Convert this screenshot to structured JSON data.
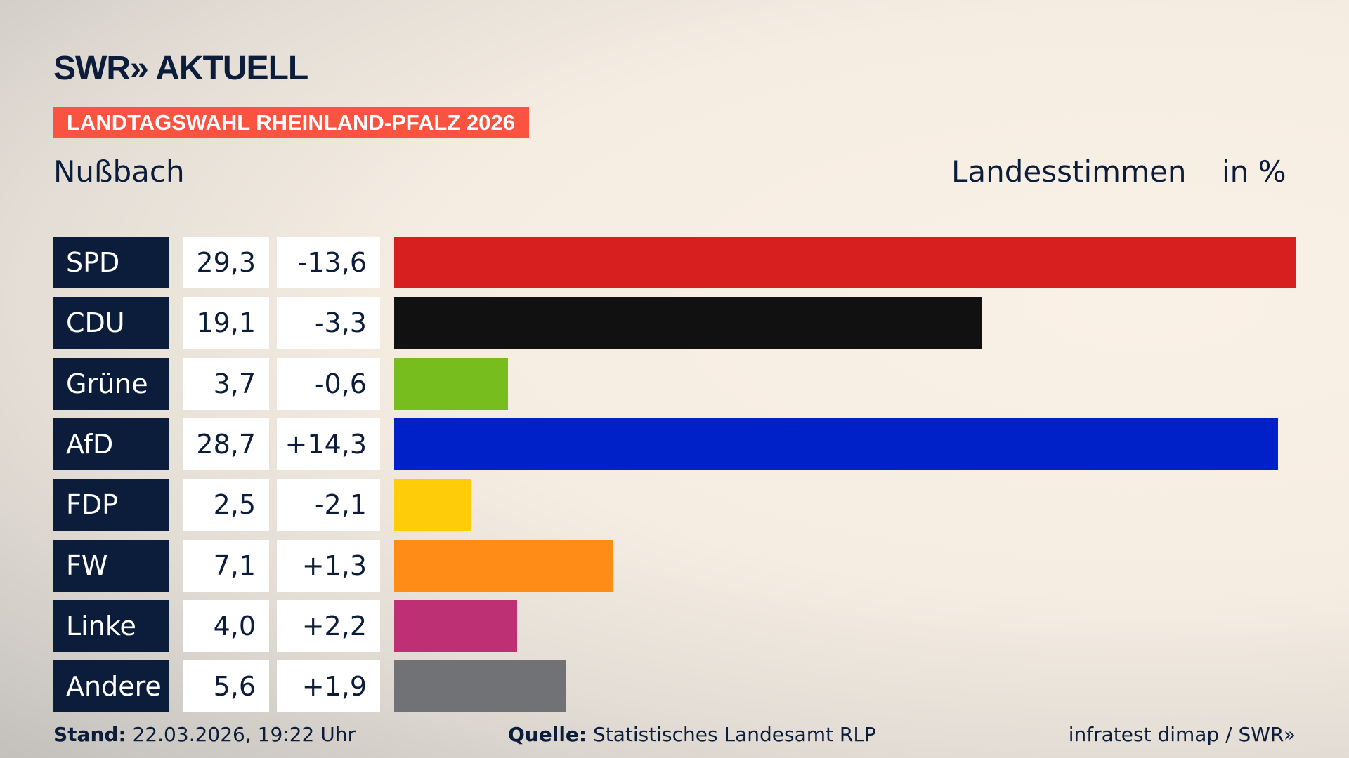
{
  "header": {
    "logo": "SWR» AKTUELL",
    "banner": "LANDTAGSWAHL RHEINLAND-PFALZ 2026",
    "place": "Nußbach",
    "vote_type": "Landesstimmen",
    "unit": "in %"
  },
  "chart_data": {
    "type": "bar",
    "orientation": "horizontal",
    "xlim": [
      0,
      29.3
    ],
    "categories": [
      "SPD",
      "CDU",
      "Grüne",
      "AfD",
      "FDP",
      "FW",
      "Linke",
      "Andere"
    ],
    "values": [
      29.3,
      19.1,
      3.7,
      28.7,
      2.5,
      7.1,
      4.0,
      5.6
    ],
    "value_labels": [
      "29,3",
      "19,1",
      "3,7",
      "28,7",
      "2,5",
      "7,1",
      "4,0",
      "5,6"
    ],
    "diff_labels": [
      "-13,6",
      "-3,3",
      "-0,6",
      "+14,3",
      "-2,1",
      "+1,3",
      "+2,2",
      "+1,9"
    ],
    "colors": [
      "#d81f20",
      "#111111",
      "#78bd1e",
      "#0020c8",
      "#ffcc0a",
      "#ff8c16",
      "#bd3174",
      "#717275"
    ]
  },
  "footer": {
    "stand_label": "Stand:",
    "stand_value": "22.03.2026, 19:22 Uhr",
    "source_label": "Quelle:",
    "source_value": "Statistisches Landesamt RLP",
    "credit": "infratest dimap / SWR»"
  }
}
